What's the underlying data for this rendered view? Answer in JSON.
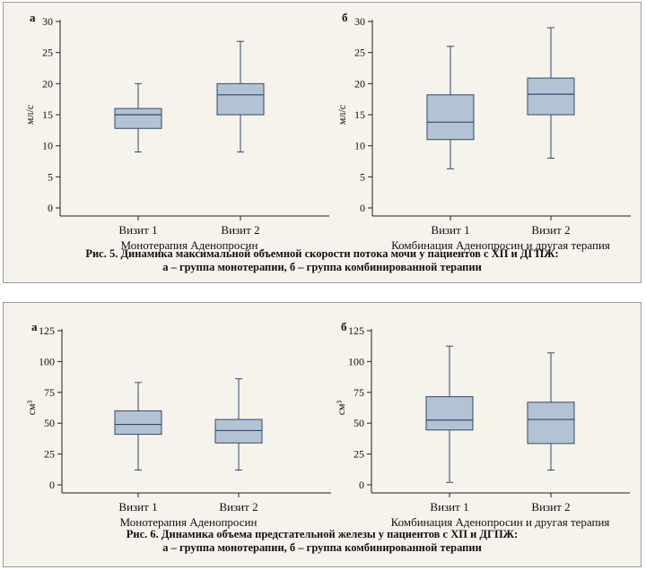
{
  "chart_data": [
    {
      "type": "boxplot",
      "figure": "fig5",
      "panel_letter": "а",
      "ylabel": "мл/с",
      "ylim": [
        0,
        30
      ],
      "yticks": [
        0,
        5,
        10,
        15,
        20,
        25,
        30
      ],
      "categories": [
        "Визит 1",
        "Визит 2"
      ],
      "group_label": "Монотерапия Аденопросин",
      "boxes": [
        {
          "min": 9,
          "q1": 12.8,
          "median": 15,
          "q3": 16,
          "max": 20
        },
        {
          "min": 9,
          "q1": 15,
          "median": 18.2,
          "q3": 20,
          "max": 26.8
        }
      ]
    },
    {
      "type": "boxplot",
      "figure": "fig5",
      "panel_letter": "б",
      "ylabel": "мл/с",
      "ylim": [
        0,
        30
      ],
      "yticks": [
        0,
        5,
        10,
        15,
        20,
        25,
        30
      ],
      "categories": [
        "Визит 1",
        "Визит 2"
      ],
      "group_label": "Комбинация Аденопросин и другая терапия",
      "boxes": [
        {
          "min": 6.3,
          "q1": 11,
          "median": 13.8,
          "q3": 18.2,
          "max": 26
        },
        {
          "min": 8,
          "q1": 15,
          "median": 18.3,
          "q3": 20.9,
          "max": 29
        }
      ]
    },
    {
      "type": "boxplot",
      "figure": "fig6",
      "panel_letter": "а",
      "ylabel": "см³",
      "ylim": [
        0,
        125
      ],
      "yticks": [
        0,
        25,
        50,
        75,
        100,
        125
      ],
      "categories": [
        "Визит 1",
        "Визит 2"
      ],
      "group_label": "Монотерапия Аденопросин",
      "boxes": [
        {
          "min": 12,
          "q1": 41,
          "median": 49,
          "q3": 60,
          "max": 83
        },
        {
          "min": 12,
          "q1": 34,
          "median": 44,
          "q3": 53,
          "max": 86
        }
      ]
    },
    {
      "type": "boxplot",
      "figure": "fig6",
      "panel_letter": "б",
      "ylabel": "см³",
      "ylim": [
        0,
        125
      ],
      "yticks": [
        0,
        25,
        50,
        75,
        100,
        125
      ],
      "categories": [
        "Визит 1",
        "Визит 2"
      ],
      "group_label": "Комбинация Аденопросин и другая терапия",
      "boxes": [
        {
          "min": 2,
          "q1": 44.5,
          "median": 52.5,
          "q3": 71.5,
          "max": 112.5
        },
        {
          "min": 12,
          "q1": 33.5,
          "median": 53,
          "q3": 67,
          "max": 107
        }
      ]
    }
  ],
  "captions": {
    "fig5": {
      "line1": "Рис. 5. Динамика максимальной объемной скорости потока мочи у пациентов с ХП и ДГПЖ:",
      "line2": "а – группа монотерапии, б – группа комбинированной терапии"
    },
    "fig6": {
      "line1": "Рис. 6. Динамика объема предстательной железы у пациентов с ХП и ДГПЖ:",
      "line2": "а – группа монотерапии, б – группа комбинированной терапии"
    }
  },
  "colors": {
    "box_fill": "#b4c3d4",
    "box_stroke": "#34476b",
    "axis": "#222222"
  }
}
